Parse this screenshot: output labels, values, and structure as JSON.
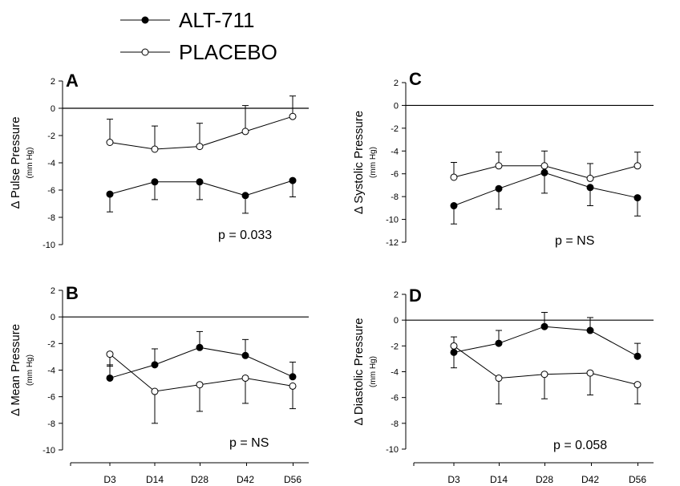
{
  "legend": {
    "items": [
      {
        "label": "ALT-711",
        "marker": "filled"
      },
      {
        "label": "PLACEBO",
        "marker": "open"
      }
    ]
  },
  "chart_data": [
    {
      "type": "line",
      "panel_label": "A",
      "ylabel": "Δ Pulse Pressure",
      "yunit": "(mm Hg)",
      "p_value": "p = 0.033",
      "categories": [
        "D3",
        "D14",
        "D28",
        "D42",
        "D56"
      ],
      "show_xlabels": false,
      "ylim": [
        -10,
        2
      ],
      "yticks": [
        2,
        0,
        -2,
        -4,
        -6,
        -8,
        -10
      ],
      "zero_line": true,
      "series": [
        {
          "name": "ALT-711",
          "marker": "filled",
          "values": [
            -6.3,
            -5.4,
            -5.4,
            -6.4,
            -5.3
          ],
          "errors": [
            1.3,
            1.3,
            1.3,
            1.3,
            1.2
          ],
          "error_dir": "down"
        },
        {
          "name": "PLACEBO",
          "marker": "open",
          "values": [
            -2.5,
            -3.0,
            -2.8,
            -1.7,
            -0.6
          ],
          "errors": [
            1.7,
            1.7,
            1.7,
            1.9,
            1.5
          ],
          "error_dir": "up"
        }
      ]
    },
    {
      "type": "line",
      "panel_label": "C",
      "ylabel": "Δ Systolic Pressure",
      "yunit": "(mm Hg)",
      "p_value": "p = NS",
      "categories": [
        "D3",
        "D14",
        "D28",
        "D42",
        "D56"
      ],
      "show_xlabels": false,
      "ylim": [
        -12,
        2
      ],
      "yticks": [
        2,
        0,
        -2,
        -4,
        -6,
        -8,
        -10,
        -12
      ],
      "zero_line": true,
      "series": [
        {
          "name": "ALT-711",
          "marker": "filled",
          "values": [
            -8.8,
            -7.3,
            -5.9,
            -7.2,
            -8.1
          ],
          "errors": [
            1.6,
            1.8,
            1.8,
            1.6,
            1.6
          ],
          "error_dir": "down"
        },
        {
          "name": "PLACEBO",
          "marker": "open",
          "values": [
            -6.3,
            -5.3,
            -5.3,
            -6.4,
            -5.3
          ],
          "errors": [
            1.3,
            1.2,
            1.3,
            1.3,
            1.2
          ],
          "error_dir": "up"
        }
      ]
    },
    {
      "type": "line",
      "panel_label": "B",
      "ylabel": "Δ Mean Pressure",
      "yunit": "(mm Hg)",
      "p_value": "p = NS",
      "categories": [
        "D3",
        "D14",
        "D28",
        "D42",
        "D56"
      ],
      "show_xlabels": true,
      "ylim": [
        -10,
        2
      ],
      "yticks": [
        2,
        0,
        -2,
        -4,
        -6,
        -8,
        -10
      ],
      "zero_line": true,
      "series": [
        {
          "name": "ALT-711",
          "marker": "filled",
          "values": [
            -4.6,
            -3.6,
            -2.3,
            -2.9,
            -4.5
          ],
          "errors": [
            1.0,
            1.2,
            1.2,
            1.2,
            1.1
          ],
          "error_dir": "up"
        },
        {
          "name": "PLACEBO",
          "marker": "open",
          "values": [
            -2.8,
            -5.6,
            -5.1,
            -4.6,
            -5.2
          ],
          "errors": [
            0.9,
            2.4,
            2.0,
            1.9,
            1.7
          ],
          "error_dir": "down"
        }
      ]
    },
    {
      "type": "line",
      "panel_label": "D",
      "ylabel": "Δ Diastolic Pressure",
      "yunit": "(mm Hg)",
      "p_value": "p = 0.058",
      "categories": [
        "D3",
        "D14",
        "D28",
        "D42",
        "D56"
      ],
      "show_xlabels": true,
      "ylim": [
        -10,
        2
      ],
      "yticks": [
        2,
        0,
        -2,
        -4,
        -6,
        -8,
        -10
      ],
      "zero_line": true,
      "series": [
        {
          "name": "ALT-711",
          "marker": "filled",
          "values": [
            -2.5,
            -1.8,
            -0.5,
            -0.8,
            -2.8
          ],
          "errors": [
            1.2,
            1.0,
            1.1,
            1.0,
            1.0
          ],
          "error_dir": "up"
        },
        {
          "name": "PLACEBO",
          "marker": "open",
          "values": [
            -2.0,
            -4.5,
            -4.2,
            -4.1,
            -5.0
          ],
          "errors": [
            1.7,
            2.0,
            1.9,
            1.7,
            1.5
          ],
          "error_dir": "down"
        }
      ]
    }
  ]
}
